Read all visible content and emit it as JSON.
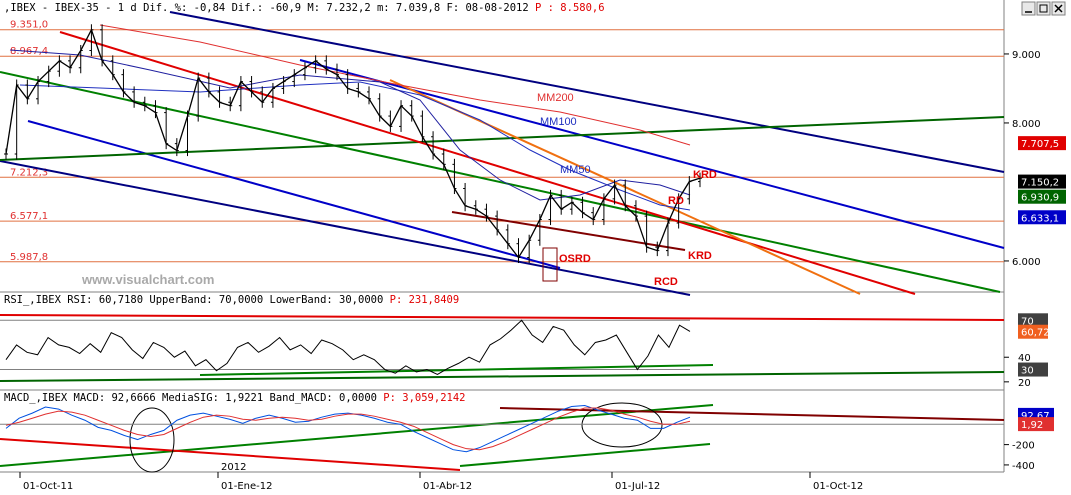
{
  "chart_data": [
    {
      "type": "line",
      "header": {
        "text": ",IBEX - IBEX-35 -  1 d Dif. %: -0,84 Dif.: -60,9 M: 7.232,2 m: 7.039,8 F: 08-08-2012 ",
        "price_label": "P : 8.580,6"
      },
      "watermark": "www.visualchart.com",
      "ylim": [
        5550,
        9550
      ],
      "y_ticks": [
        {
          "value": 9000,
          "label": "9.000"
        },
        {
          "value": 8000,
          "label": "8.000"
        },
        {
          "value": 6000,
          "label": "6.000"
        }
      ],
      "x_ticks": [
        "01-Oct-11",
        "01-Ene-12",
        "01-Abr-12",
        "01-Jul-12",
        "01-Oct-12"
      ],
      "year_marker": "2012",
      "levels": [
        {
          "value": 9351.0,
          "label": "9.351,0"
        },
        {
          "value": 8967.4,
          "label": "8.967,4"
        },
        {
          "value": 7212.3,
          "label": "7.212,3"
        },
        {
          "value": 6577.1,
          "label": "6.577,1"
        },
        {
          "value": 5987.8,
          "label": "5.987,8"
        }
      ],
      "moving_averages": [
        {
          "name": "MM200",
          "color": "#e03030"
        },
        {
          "name": "MM100",
          "color": "#2030c0"
        },
        {
          "name": "MM50",
          "color": "#2030c0"
        }
      ],
      "annotations": [
        "KRD",
        "RD",
        "KRD",
        "OSRD",
        "RCD"
      ],
      "value_badges": [
        {
          "value": 7707.5,
          "label": "7.707,5",
          "bg": "#e00000",
          "fg": "#ffffff"
        },
        {
          "value": 7150.2,
          "label": "7.150,2",
          "bg": "#000000",
          "fg": "#ffffff"
        },
        {
          "value": 6930.9,
          "label": "6.930,9",
          "bg": "#006400",
          "fg": "#ffffff"
        },
        {
          "value": 6633.1,
          "label": "6.633,1",
          "bg": "#0000c8",
          "fg": "#ffffff"
        }
      ],
      "series": [
        {
          "name": "IBEX",
          "values": [
            7550,
            8550,
            8350,
            8600,
            8750,
            8900,
            8800,
            9050,
            9350,
            8900,
            8700,
            8450,
            8300,
            8250,
            8150,
            7700,
            7600,
            8100,
            8650,
            8450,
            8300,
            8250,
            8600,
            8450,
            8300,
            8500,
            8600,
            8700,
            8800,
            8900,
            8780,
            8700,
            8500,
            8450,
            8350,
            8100,
            7950,
            8250,
            8100,
            7800,
            7550,
            7400,
            7050,
            6800,
            6750,
            6650,
            6450,
            6250,
            6050,
            6300,
            6600,
            6950,
            6750,
            6850,
            6700,
            6600,
            6900,
            7100,
            6800,
            6650,
            6200,
            6150,
            6550,
            6900,
            7150,
            7200
          ]
        }
      ]
    },
    {
      "type": "line",
      "header": {
        "text": "RSI_,IBEX RSI: 60,7180 UpperBand: 70,0000 LowerBand: 30,0000 ",
        "price_label": "P: 231,8409"
      },
      "ylim": [
        15,
        80
      ],
      "y_ticks": [
        {
          "value": 40,
          "label": "40"
        },
        {
          "value": 20,
          "label": "20"
        }
      ],
      "value_badges": [
        {
          "value": 70,
          "label": "70",
          "bg": "#404040",
          "fg": "#ffffff"
        },
        {
          "value": 60.72,
          "label": "60,72",
          "bg": "#f06020",
          "fg": "#ffffff"
        },
        {
          "value": 30,
          "label": "30",
          "bg": "#404040",
          "fg": "#ffffff"
        }
      ],
      "series": [
        {
          "name": "RSI",
          "values": [
            38,
            50,
            44,
            42,
            56,
            50,
            48,
            43,
            51,
            44,
            60,
            56,
            46,
            39,
            52,
            48,
            40,
            45,
            33,
            38,
            29,
            35,
            48,
            52,
            44,
            49,
            56,
            46,
            50,
            43,
            54,
            51,
            46,
            38,
            42,
            38,
            30,
            27,
            33,
            28,
            30,
            26,
            31,
            35,
            40,
            36,
            50,
            55,
            62,
            70,
            58,
            52,
            65,
            62,
            50,
            42,
            52,
            54,
            58,
            44,
            30,
            41,
            58,
            48,
            66,
            61
          ]
        }
      ]
    },
    {
      "type": "line",
      "header": {
        "text": "MACD_,IBEX MACD: 92,6666 MediaSIG: 1,9221 Band_MACD: 0,0000 ",
        "price_label": "P: 3,059,2142"
      },
      "ylim": [
        -450,
        200
      ],
      "y_ticks": [
        {
          "value": -200,
          "label": "-200"
        },
        {
          "value": -400,
          "label": "-400"
        }
      ],
      "value_badges": [
        {
          "value": 92.67,
          "label": "92,67",
          "bg": "#0000c8",
          "fg": "#ffffff"
        },
        {
          "value": 1.92,
          "label": "1,92",
          "bg": "#e03030",
          "fg": "#ffffff"
        }
      ],
      "series": [
        {
          "name": "MACD",
          "values": [
            -40,
            60,
            110,
            170,
            150,
            90,
            40,
            -30,
            -60,
            -110,
            -150,
            -100,
            -60,
            40,
            90,
            110,
            80,
            50,
            10,
            60,
            90,
            60,
            20,
            30,
            70,
            100,
            110,
            90,
            60,
            20,
            0,
            -70,
            -130,
            -190,
            -250,
            -270,
            -230,
            -170,
            -110,
            -50,
            10,
            70,
            130,
            175,
            185,
            140,
            100,
            60,
            40,
            -40,
            -40,
            20,
            70
          ]
        },
        {
          "name": "MediaSIG",
          "values": [
            -10,
            20,
            60,
            100,
            130,
            120,
            90,
            40,
            -10,
            -60,
            -100,
            -120,
            -100,
            -40,
            20,
            70,
            90,
            80,
            50,
            40,
            60,
            70,
            60,
            40,
            50,
            80,
            100,
            100,
            80,
            50,
            20,
            -20,
            -80,
            -140,
            -200,
            -240,
            -250,
            -220,
            -170,
            -110,
            -50,
            10,
            70,
            120,
            160,
            160,
            140,
            100,
            70,
            30,
            0,
            0,
            30
          ]
        }
      ]
    }
  ]
}
